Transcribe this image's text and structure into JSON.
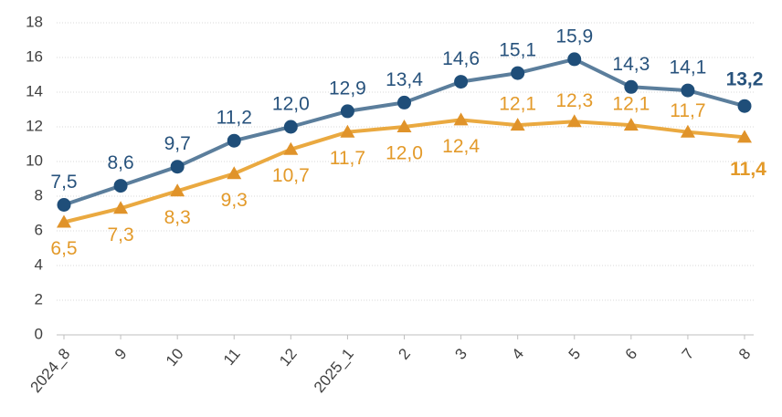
{
  "chart_data": {
    "type": "line",
    "categories": [
      "2024_8",
      "9",
      "10",
      "11",
      "12",
      "2025_1",
      "2",
      "3",
      "4",
      "5",
      "6",
      "7",
      "8"
    ],
    "series": [
      {
        "color": "#5b7e9c",
        "marker_color": "#1f4e79",
        "marker": "circle",
        "values": [
          7.5,
          8.6,
          9.7,
          11.2,
          12.0,
          12.9,
          13.4,
          14.6,
          15.1,
          15.9,
          14.3,
          14.1,
          13.2
        ],
        "value_labels": [
          "7,5",
          "8,6",
          "9,7",
          "11,2",
          "12,0",
          "12,9",
          "13,4",
          "14,6",
          "15,1",
          "15,9",
          "14,3",
          "14,1",
          "13,2"
        ]
      },
      {
        "color": "#eaa940",
        "marker_color": "#e0932a",
        "marker": "triangle",
        "values": [
          6.5,
          7.3,
          8.3,
          9.3,
          10.7,
          11.7,
          12.0,
          12.4,
          12.1,
          12.3,
          12.1,
          11.7,
          11.4
        ],
        "value_labels": [
          "6,5",
          "7,3",
          "8,3",
          "9,3",
          "10,7",
          "11,7",
          "12,0",
          "12,4",
          "12,1",
          "12,3",
          "12,1",
          "11,7",
          "11,4"
        ]
      }
    ],
    "ylim": [
      0,
      18
    ],
    "yticks": [
      0,
      2,
      4,
      6,
      8,
      10,
      12,
      14,
      16,
      18
    ],
    "grid": true
  }
}
